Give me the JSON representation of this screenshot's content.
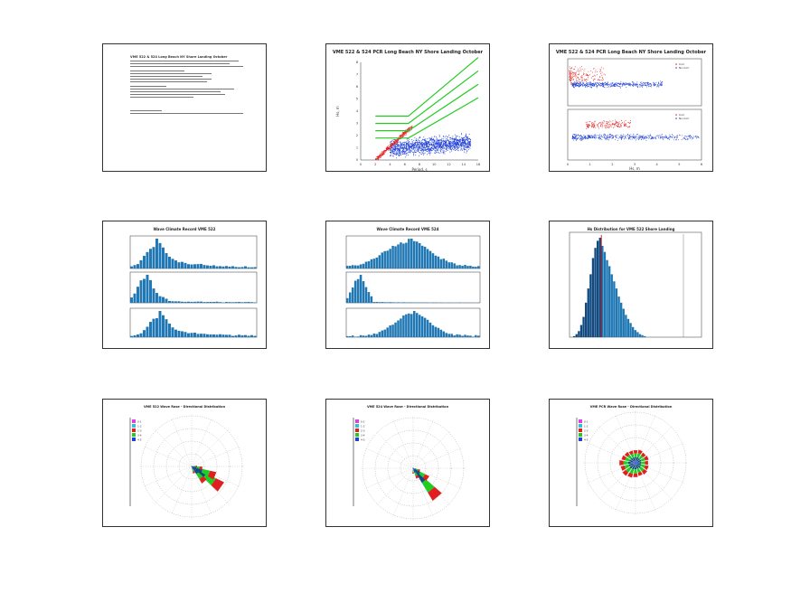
{
  "panels": {
    "p1": {
      "kind": "document",
      "title": "VME 522 & 524 Long Beach NY Shore Landing October"
    },
    "p2": {
      "title": "VME 522 & 524 PCR Long Beach NY Shore Landing October",
      "xlabel": "Period, s",
      "ylabel": "Hs, m",
      "x_ticks": [
        "0",
        "2",
        "4",
        "6",
        "8",
        "10",
        "12",
        "14",
        "16"
      ],
      "y_ticks": [
        "0",
        "1",
        "2",
        "3",
        "4",
        "5",
        "6",
        "7",
        "8"
      ]
    },
    "p3": {
      "title": "VME 522 & 524 PCR Long Beach NY Shore Landing October",
      "legend": [
        "Corr",
        "No-Corr"
      ],
      "xlabel": "Hs, m",
      "x_ticks": [
        "0",
        "1",
        "2",
        "3",
        "4",
        "5",
        "6"
      ]
    },
    "p4": {
      "title": "Wave Climate Record VME 522"
    },
    "p5": {
      "title": "Wave Climate Record VME 524"
    },
    "p6": {
      "title": "Hs Distribution for VME 522 Shore Landing"
    },
    "p7": {
      "title": "VME 522 Wave Rose - Directional Distribution",
      "legend": [
        "0-1",
        "1-2",
        "2-3",
        "3-4",
        "4-5"
      ]
    },
    "p8": {
      "title": "VME 524 Wave Rose - Directional Distribution",
      "legend": [
        "0-1",
        "1-2",
        "2-3",
        "3-4",
        "4-5"
      ]
    },
    "p9": {
      "title": "VME PCR Wave Rose - Directional Distribution",
      "legend": [
        "0-1",
        "1-2",
        "2-3",
        "3-4",
        "4-5"
      ]
    }
  },
  "colors": {
    "blue": "#1f3fd6",
    "red": "#e02020",
    "green": "#22cc22",
    "bar": "#1f77b4",
    "darkbar": "#104a80",
    "magenta": "#e040e0",
    "cyan": "#30c0e0"
  },
  "chart_data": [
    {
      "type": "scatter",
      "title": "VME 522 & 524 PCR Long Beach NY Shore Landing October",
      "xlabel": "Period, s",
      "ylabel": "Hs, m",
      "xlim": [
        0,
        16
      ],
      "ylim": [
        0,
        8
      ],
      "series": [
        {
          "color": "red"
        },
        {
          "color": "blue"
        },
        {
          "color": "green"
        }
      ]
    },
    {
      "type": "bar",
      "title": "Hs Distribution for VME 522 Shore Landing",
      "values": [
        1,
        3,
        6,
        12,
        20,
        34,
        48,
        62,
        78,
        88,
        95,
        98,
        90,
        84,
        76,
        70,
        62,
        55,
        48,
        40,
        34,
        28,
        22,
        18,
        14,
        10,
        7,
        5,
        3,
        2,
        1
      ]
    }
  ]
}
